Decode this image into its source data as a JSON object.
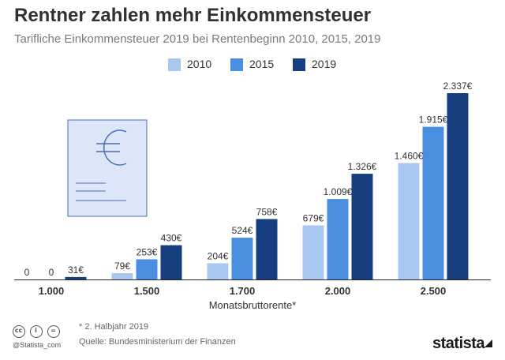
{
  "title": "Rentner zahlen mehr Einkommensteuer",
  "subtitle": "Tarifliche Einkommensteuer 2019 bei Rentenbeginn 2010, 2015, 2019",
  "colors": {
    "2010": "#a9c8f0",
    "2015": "#4a8ee0",
    "2019": "#173f7f",
    "document_fill": "#dde6f9",
    "document_line": "#4a6fb3"
  },
  "footer": {
    "note": "* 2. Halbjahr 2019",
    "source": "Quelle: Bundesministerium der Finanzen",
    "handle": "@Statista_com",
    "brand": "statista",
    "license_icons": [
      "cc-icon",
      "by-icon",
      "nd-icon"
    ]
  },
  "chart_data": {
    "type": "bar",
    "title": "Rentner zahlen mehr Einkommensteuer",
    "subtitle": "Tarifliche Einkommensteuer 2019 bei Rentenbeginn 2010, 2015, 2019",
    "xlabel": "Monatsbruttorente*",
    "ylabel": "",
    "categories": [
      "1.000",
      "1.500",
      "1.700",
      "2.000",
      "2.500"
    ],
    "series": [
      {
        "name": "2010",
        "values": [
          0,
          79,
          204,
          679,
          1460
        ],
        "labels": [
          "0",
          "79€",
          "204€",
          "679€",
          "1.460€"
        ]
      },
      {
        "name": "2015",
        "values": [
          0,
          253,
          524,
          1009,
          1915
        ],
        "labels": [
          "0",
          "253€",
          "524€",
          "1.009€",
          "1.915€"
        ]
      },
      {
        "name": "2019",
        "values": [
          31,
          430,
          758,
          1326,
          2337
        ],
        "labels": [
          "31€",
          "430€",
          "758€",
          "1.326€",
          "2.337€"
        ]
      }
    ],
    "ylim": [
      0,
      2337
    ],
    "grid": false,
    "legend": "top-center"
  }
}
